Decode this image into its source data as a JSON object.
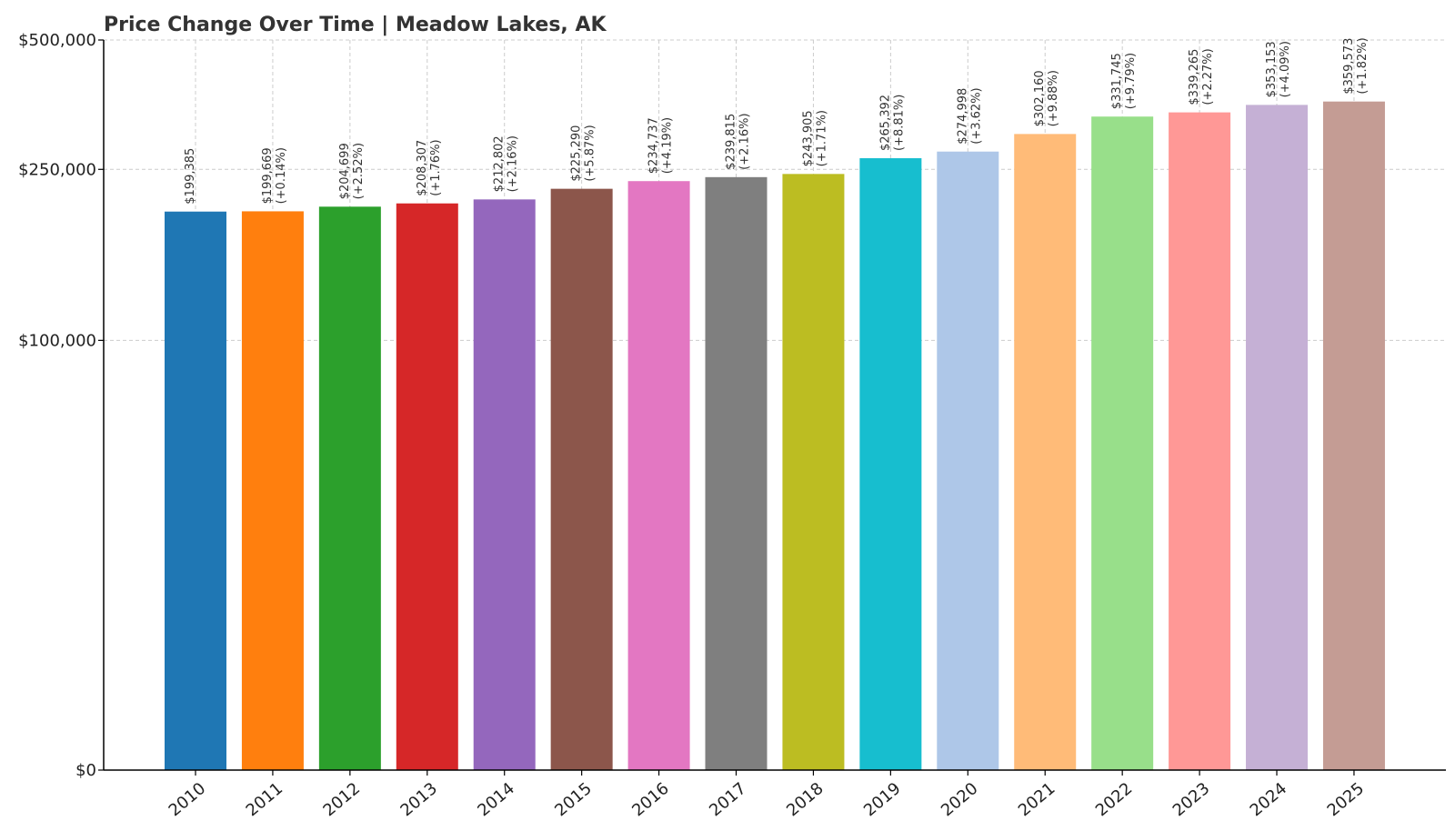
{
  "chart_data": {
    "type": "bar",
    "title": "Price Change Over Time | Meadow Lakes, AK",
    "xlabel": "",
    "ylabel": "",
    "categories": [
      "2010",
      "2011",
      "2012",
      "2013",
      "2014",
      "2015",
      "2016",
      "2017",
      "2018",
      "2019",
      "2020",
      "2021",
      "2022",
      "2023",
      "2024",
      "2025"
    ],
    "values": [
      199385,
      199669,
      204699,
      208307,
      212802,
      225290,
      234737,
      239815,
      243905,
      265392,
      274998,
      302160,
      331745,
      339265,
      353153,
      359573
    ],
    "value_labels": [
      "$199,385",
      "$199,669",
      "$204,699",
      "$208,307",
      "$212,802",
      "$225,290",
      "$234,737",
      "$239,815",
      "$243,905",
      "$265,392",
      "$274,998",
      "$302,160",
      "$331,745",
      "$339,265",
      "$353,153",
      "$359,573"
    ],
    "change_labels": [
      "",
      "(+0.14%)",
      "(+2.52%)",
      "(+1.76%)",
      "(+2.16%)",
      "(+5.87%)",
      "(+4.19%)",
      "(+2.16%)",
      "(+1.71%)",
      "(+8.81%)",
      "(+3.62%)",
      "(+9.88%)",
      "(+9.79%)",
      "(+2.27%)",
      "(+4.09%)",
      "(+1.82%)"
    ],
    "colors": [
      "#1f77b4",
      "#ff7f0e",
      "#2ca02c",
      "#d62728",
      "#9467bd",
      "#8c564b",
      "#e377c2",
      "#7f7f7f",
      "#bcbd22",
      "#17becf",
      "#aec7e8",
      "#ffbb78",
      "#98df8a",
      "#ff9896",
      "#c5b0d5",
      "#c49c94"
    ],
    "ylim": [
      0,
      500000
    ],
    "yscale": "symlog",
    "yticks": [
      0,
      100000,
      250000,
      500000
    ],
    "ytick_labels": [
      "$0",
      "$100,000",
      "$250,000",
      "$500,000"
    ],
    "grid": true,
    "legend": "none"
  }
}
